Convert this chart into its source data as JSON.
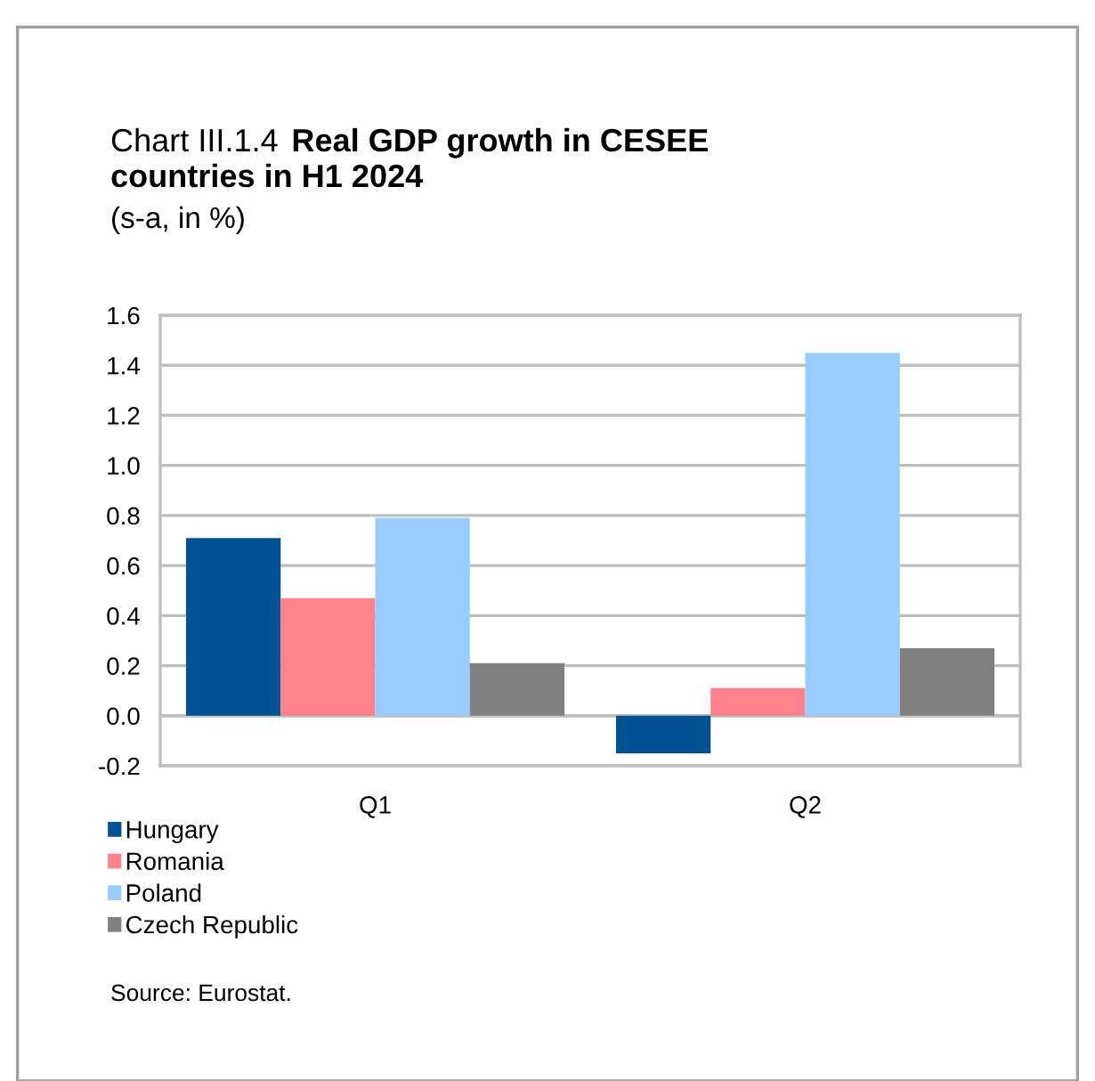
{
  "chart_data": {
    "type": "bar",
    "title": "Chart III.1.4 Real GDP growth in CESEE countries in H1 2024",
    "subtitle": "(s-a, in %)",
    "categories": [
      "Q1",
      "Q2"
    ],
    "series": [
      {
        "name": "Hungary",
        "color": "#005293",
        "values": [
          0.71,
          -0.15
        ]
      },
      {
        "name": "Romania",
        "color": "#ff818c",
        "values": [
          0.47,
          0.11
        ]
      },
      {
        "name": "Poland",
        "color": "#99ccff",
        "values": [
          0.79,
          1.45
        ]
      },
      {
        "name": "Czech Republic",
        "color": "#808080",
        "values": [
          0.21,
          0.27
        ]
      }
    ],
    "ylim": [
      -0.2,
      1.6
    ],
    "yticks": [
      {
        "value": -0.2,
        "label": "-0.2"
      },
      {
        "value": 0,
        "label": "0.0"
      },
      {
        "value": 0.2,
        "label": "0.2"
      },
      {
        "value": 0.4,
        "label": "0.4"
      },
      {
        "value": 0.6,
        "label": "0.6"
      },
      {
        "value": 0.8,
        "label": "0.8"
      },
      {
        "value": 1.0,
        "label": "1.0"
      },
      {
        "value": 1.2,
        "label": "1.2"
      },
      {
        "value": 1.4,
        "label": "1.4"
      },
      {
        "value": 1.6,
        "label": "1.6"
      }
    ],
    "grid": "y",
    "legend": "bottom left",
    "annotations": [
      "Source: Eurostat."
    ]
  }
}
